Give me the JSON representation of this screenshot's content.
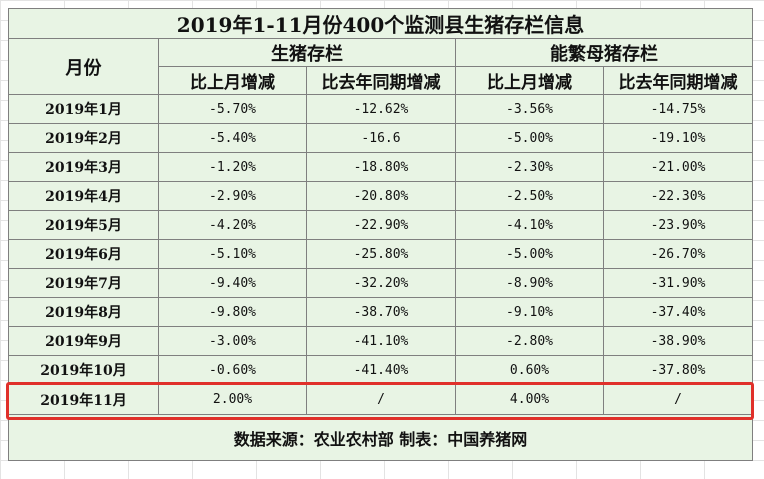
{
  "table": {
    "title": "2019年1-11月份400个监测县生猪存栏信息",
    "month_header": "月份",
    "groups": [
      "生猪存栏",
      "能繁母猪存栏"
    ],
    "sub_headers": [
      "比上月增减",
      "比去年同期增减",
      "比上月增减",
      "比去年同期增减"
    ],
    "rows": [
      {
        "month": "2019年1月",
        "c1": "-5.70%",
        "c2": "-12.62%",
        "c3": "-3.56%",
        "c4": "-14.75%"
      },
      {
        "month": "2019年2月",
        "c1": "-5.40%",
        "c2": "-16.6",
        "c3": "-5.00%",
        "c4": "-19.10%"
      },
      {
        "month": "2019年3月",
        "c1": "-1.20%",
        "c2": "-18.80%",
        "c3": "-2.30%",
        "c4": "-21.00%"
      },
      {
        "month": "2019年4月",
        "c1": "-2.90%",
        "c2": "-20.80%",
        "c3": "-2.50%",
        "c4": "-22.30%"
      },
      {
        "month": "2019年5月",
        "c1": "-4.20%",
        "c2": "-22.90%",
        "c3": "-4.10%",
        "c4": "-23.90%"
      },
      {
        "month": "2019年6月",
        "c1": "-5.10%",
        "c2": "-25.80%",
        "c3": "-5.00%",
        "c4": "-26.70%"
      },
      {
        "month": "2019年7月",
        "c1": "-9.40%",
        "c2": "-32.20%",
        "c3": "-8.90%",
        "c4": "-31.90%"
      },
      {
        "month": "2019年8月",
        "c1": "-9.80%",
        "c2": "-38.70%",
        "c3": "-9.10%",
        "c4": "-37.40%"
      },
      {
        "month": "2019年9月",
        "c1": "-3.00%",
        "c2": "-41.10%",
        "c3": "-2.80%",
        "c4": "-38.90%"
      },
      {
        "month": "2019年10月",
        "c1": "-0.60%",
        "c2": "-41.40%",
        "c3": "0.60%",
        "c4": "-37.80%"
      },
      {
        "month": "2019年11月",
        "c1": "2.00%",
        "c2": "/",
        "c3": "4.00%",
        "c4": "/"
      }
    ],
    "footer": "数据来源：农业农村部    制表：中国养猪网"
  },
  "colors": {
    "cell_background": "#e8f4e4",
    "border": "#7f7f7f",
    "highlight": "#e0302a"
  }
}
